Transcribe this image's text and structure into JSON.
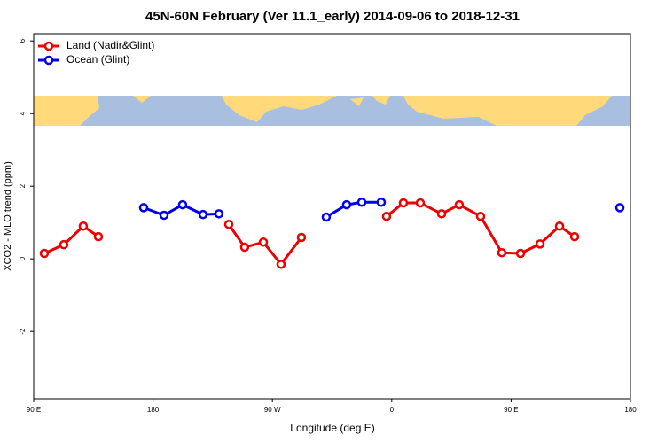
{
  "chart_data": {
    "type": "line",
    "title": "45N-60N February (Ver 11.1_early)   2014-09-06 to 2018-12-31",
    "xlabel": "Longitude (deg E)",
    "ylabel": "XCO2 - MLO trend (ppm)",
    "xlim": [
      90,
      540
    ],
    "xticks": [
      {
        "value": 90,
        "label": "90 E"
      },
      {
        "value": 180,
        "label": "180"
      },
      {
        "value": 270,
        "label": "90 W"
      },
      {
        "value": 360,
        "label": "0"
      },
      {
        "value": 450,
        "label": "90 E"
      },
      {
        "value": 540,
        "label": "180"
      }
    ],
    "ylim": [
      -3.85,
      6.2
    ],
    "yticks": [
      -2,
      0,
      2,
      4,
      6
    ],
    "legend": "top-left",
    "series": [
      {
        "name": "Land (Nadir&Glint)",
        "color": "#ee0000",
        "x": [
          98.0,
          112.7,
          127.4,
          138.8,
          null,
          237.1,
          249.1,
          263.2,
          276.5,
          291.9,
          null,
          356.1,
          368.8,
          381.5,
          397.6,
          410.9,
          427.0,
          443.0,
          457.1,
          471.8,
          486.5,
          497.9
        ],
        "values": [
          0.15,
          0.39,
          0.9,
          0.61,
          null,
          0.95,
          0.32,
          0.46,
          -0.15,
          0.59,
          null,
          1.17,
          1.54,
          1.54,
          1.24,
          1.49,
          1.17,
          0.17,
          0.15,
          0.41,
          0.9,
          0.61
        ]
      },
      {
        "name": "Ocean (Glint)",
        "color": "#0000ee",
        "x": [
          172.9,
          188.3,
          202.3,
          217.7,
          229.7,
          null,
          310.6,
          326.0,
          337.4,
          352.1,
          null,
          532.0
        ],
        "values": [
          1.41,
          1.2,
          1.49,
          1.22,
          1.24,
          null,
          1.15,
          1.49,
          1.56,
          1.56,
          null,
          1.41
        ]
      }
    ]
  }
}
